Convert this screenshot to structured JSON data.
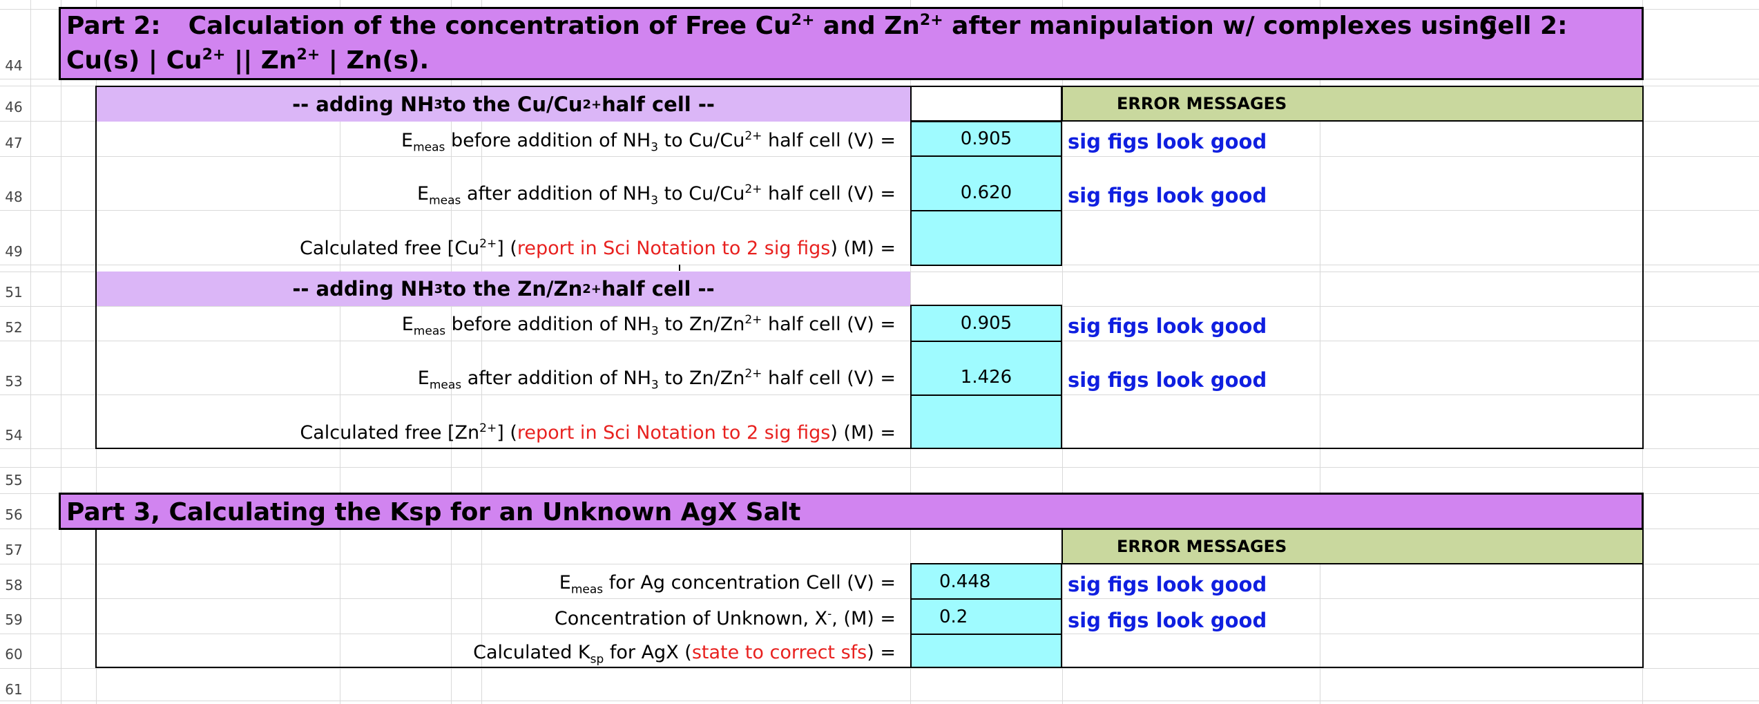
{
  "rows": [
    "44",
    "46",
    "47",
    "48",
    "49",
    "51",
    "52",
    "53",
    "54",
    "55",
    "56",
    "57",
    "58",
    "59",
    "60",
    "61"
  ],
  "part2": {
    "title_part": "Part 2:",
    "title_text_1": "Calculation of the concentration of Free Cu",
    "title_text_2": " and Zn",
    "title_text_3": " after manipulation w/ complexes using",
    "title_cell": "Cell 2:",
    "cell_line": "Cu(s) | Cu",
    "cell_line_2": " || Zn",
    "cell_line_3": " | Zn(s).",
    "sup_2plus": "2+",
    "cu_header_1": "--  adding NH",
    "cu_header_2": " to the Cu/Cu",
    "cu_header_3": " half cell  --",
    "zn_header_1": "--  adding NH",
    "zn_header_2": " to the Zn/Zn",
    "zn_header_3": " half cell  --",
    "sub3": "3",
    "error_header": "ERROR MESSAGES",
    "E": "E",
    "meas": "meas",
    "cu_before_a": " before addition of NH",
    "cu_before_b": " to Cu/Cu",
    "cu_before_c": " half cell (V) =",
    "cu_after_a": " after addition of NH",
    "cu_after_b": " to Cu/Cu",
    "cu_after_c": " half cell (V) =",
    "cu_calc_a": "Calculated free [Cu",
    "cu_calc_b": "] (",
    "cu_calc_red": "report in Sci Notation to 2 sig figs",
    "cu_calc_c": ") (M) =",
    "zn_before_a": " before addition of NH",
    "zn_before_b": " to Zn/Zn",
    "zn_before_c": " half cell (V) =",
    "zn_after_a": " after addition of NH",
    "zn_after_b": " to Zn/Zn",
    "zn_after_c": " half cell (V) =",
    "zn_calc_a": "Calculated free [Zn",
    "zn_calc_b": "] (",
    "zn_calc_red": "report in Sci Notation to 2 sig figs",
    "zn_calc_c": ") (M) =",
    "values": {
      "cu_before": "0.905",
      "cu_after": "0.620",
      "cu_calc": "",
      "zn_before": "0.905",
      "zn_after": "1.426",
      "zn_calc": ""
    },
    "messages": {
      "cu_before": "sig figs look good",
      "cu_after": "sig figs look good",
      "zn_before": "sig figs look good",
      "zn_after": "sig figs look good"
    }
  },
  "part3": {
    "title": "Part 3, Calculating the Ksp for an Unknown AgX Salt",
    "error_header": "ERROR MESSAGES",
    "E": "E",
    "meas": "meas",
    "ag_cell": " for Ag concentration Cell (V) =",
    "unknown_a": "Concentration of Unknown, X",
    "unknown_sup": "-",
    "unknown_b": ", (M) =",
    "ksp_a": "Calculated K",
    "ksp_sub": "sp",
    "ksp_b": " for AgX (",
    "ksp_red": "state to correct sfs",
    "ksp_c": ") =",
    "values": {
      "ag_cell": "0.448",
      "unknown": "0.2",
      "ksp": ""
    },
    "messages": {
      "ag_cell": "sig figs look good",
      "unknown": "sig figs look good"
    }
  },
  "colors": {
    "title_band": "#d184f0",
    "sub_band": "#dbb6f7",
    "error_header": "#c9d89e",
    "input_cell": "#9ffbff",
    "message_text": "#0f1fe0",
    "instruction_text": "#e8211f"
  }
}
